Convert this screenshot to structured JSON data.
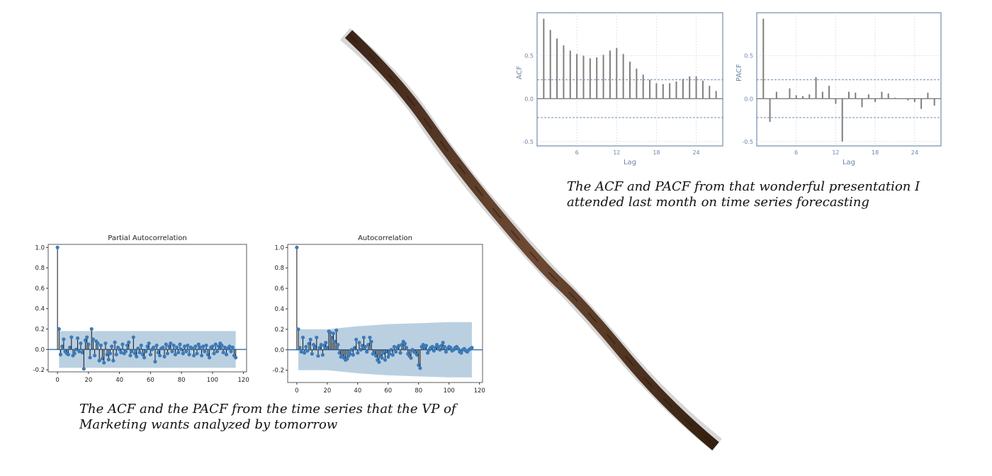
{
  "captions": {
    "top": "The ACF and PACF from that wonderful presentation I attended last month on time series forecasting",
    "bottom": "The ACF and the PACF from the time series that the VP of Marketing wants analyzed by tomorrow"
  },
  "colors": {
    "r_bar": "#7f7f7f",
    "r_ci": "#6f8fb3",
    "r_frame": "#8ea4be",
    "py_marker": "#3d7ab8",
    "py_band": "#aec8dc",
    "stick": "#5b3b2b"
  },
  "chart_data": [
    {
      "id": "r-acf",
      "type": "bar",
      "xlabel": "Lag",
      "ylabel": "ACF",
      "xlim": [
        0,
        28
      ],
      "ylim": [
        -0.55,
        1.0
      ],
      "xticks": [
        6,
        12,
        18,
        24
      ],
      "yticks": [
        -0.5,
        0.0,
        0.5
      ],
      "ytick_labels": [
        "-0.5",
        "0.0",
        "0.5"
      ],
      "ci": 0.22,
      "x": [
        1,
        2,
        3,
        4,
        5,
        6,
        7,
        8,
        9,
        10,
        11,
        12,
        13,
        14,
        15,
        16,
        17,
        18,
        19,
        20,
        21,
        22,
        23,
        24,
        25,
        26,
        27
      ],
      "values": [
        0.93,
        0.8,
        0.7,
        0.62,
        0.56,
        0.52,
        0.5,
        0.47,
        0.48,
        0.51,
        0.56,
        0.59,
        0.52,
        0.43,
        0.35,
        0.28,
        0.22,
        0.18,
        0.17,
        0.18,
        0.2,
        0.23,
        0.26,
        0.26,
        0.21,
        0.15,
        0.09
      ]
    },
    {
      "id": "r-pacf",
      "type": "bar",
      "xlabel": "Lag",
      "ylabel": "PACF",
      "xlim": [
        0,
        28
      ],
      "ylim": [
        -0.55,
        1.0
      ],
      "xticks": [
        6,
        12,
        18,
        24
      ],
      "yticks": [
        -0.5,
        0.0,
        0.5
      ],
      "ytick_labels": [
        "-0.5",
        "0.0",
        "0.5"
      ],
      "ci": 0.22,
      "x": [
        1,
        2,
        3,
        4,
        5,
        6,
        7,
        8,
        9,
        10,
        11,
        12,
        13,
        14,
        15,
        16,
        17,
        18,
        19,
        20,
        21,
        22,
        23,
        24,
        25,
        26,
        27
      ],
      "values": [
        0.93,
        -0.27,
        0.08,
        0.0,
        0.12,
        0.04,
        0.03,
        0.05,
        0.25,
        0.08,
        0.15,
        -0.06,
        -0.5,
        0.08,
        0.07,
        -0.1,
        0.05,
        -0.04,
        0.08,
        0.06,
        0.01,
        0.0,
        -0.02,
        -0.04,
        -0.12,
        0.07,
        -0.08
      ]
    },
    {
      "id": "py-pacf",
      "type": "bar",
      "title": "Partial Autocorrelation",
      "xlim": [
        -6,
        122
      ],
      "ylim": [
        -0.22,
        1.03
      ],
      "xticks": [
        0,
        20,
        40,
        60,
        80,
        100,
        120
      ],
      "yticks": [
        -0.2,
        0.0,
        0.2,
        0.4,
        0.6,
        0.8,
        1.0
      ],
      "ytick_labels": [
        "-0.2",
        "0.0",
        "0.2",
        "0.4",
        "0.6",
        "0.8",
        "1.0"
      ],
      "band_x": [
        1,
        115
      ],
      "band_upper": [
        0.18,
        0.18
      ],
      "band_lower": [
        -0.18,
        -0.18
      ],
      "values": [
        1.0,
        0.2,
        -0.05,
        0.03,
        0.1,
        -0.02,
        -0.04,
        -0.05,
        0.02,
        0.12,
        -0.06,
        -0.04,
        0.0,
        0.11,
        -0.02,
        0.06,
        -0.03,
        -0.19,
        0.09,
        0.12,
        0.05,
        -0.08,
        0.2,
        0.1,
        -0.06,
        0.08,
        0.06,
        -0.11,
        0.04,
        -0.09,
        -0.13,
        0.06,
        -0.05,
        -0.1,
        -0.04,
        0.03,
        -0.11,
        0.07,
        -0.05,
        0.02,
        0.0,
        -0.03,
        0.05,
        -0.04,
        -0.02,
        0.04,
        0.07,
        -0.06,
        -0.02,
        0.12,
        -0.04,
        -0.07,
        0.01,
        -0.03,
        0.04,
        -0.05,
        -0.08,
        -0.02,
        0.03,
        0.06,
        -0.05,
        0.0,
        0.02,
        -0.12,
        0.04,
        -0.03,
        -0.06,
        0.01,
        0.02,
        -0.07,
        0.05,
        -0.04,
        0.03,
        0.06,
        -0.02,
        0.04,
        -0.05,
        0.02,
        -0.03,
        0.05,
        0.0,
        -0.04,
        0.03,
        -0.02,
        0.04,
        -0.05,
        0.02,
        0.01,
        -0.06,
        0.03,
        -0.04,
        0.05,
        0.02,
        -0.06,
        0.03,
        -0.02,
        0.04,
        -0.05,
        -0.08,
        0.02,
        0.03,
        -0.04,
        0.05,
        -0.02,
        0.03,
        0.06,
        0.04,
        -0.03,
        0.02,
        -0.05,
        0.01,
        0.03,
        -0.02,
        0.02,
        -0.06,
        -0.08
      ]
    },
    {
      "id": "py-acf",
      "type": "bar",
      "title": "Autocorrelation",
      "xlim": [
        -6,
        122
      ],
      "ylim": [
        -0.32,
        1.03
      ],
      "xticks": [
        0,
        20,
        40,
        60,
        80,
        100,
        120
      ],
      "yticks": [
        -0.2,
        0.0,
        0.2,
        0.4,
        0.6,
        0.8,
        1.0
      ],
      "ytick_labels": [
        "-0.2",
        "0.0",
        "0.2",
        "0.4",
        "0.6",
        "0.8",
        "1.0"
      ],
      "band_x": [
        1,
        20,
        40,
        60,
        80,
        100,
        115
      ],
      "band_upper": [
        0.2,
        0.2,
        0.23,
        0.25,
        0.26,
        0.27,
        0.27
      ],
      "band_lower": [
        -0.2,
        -0.2,
        -0.23,
        -0.25,
        -0.26,
        -0.27,
        -0.27
      ],
      "values": [
        1.0,
        0.2,
        0.02,
        -0.02,
        0.12,
        -0.03,
        0.03,
        -0.01,
        0.06,
        0.1,
        -0.04,
        0.05,
        0.03,
        0.12,
        -0.06,
        0.02,
        0.05,
        -0.05,
        0.04,
        0.07,
        0.02,
        0.18,
        0.17,
        0.12,
        0.16,
        0.08,
        0.19,
        0.05,
        -0.03,
        -0.07,
        -0.06,
        -0.08,
        -0.1,
        -0.09,
        -0.06,
        -0.04,
        0.0,
        -0.05,
        0.02,
        0.1,
        -0.03,
        0.07,
        0.0,
        0.04,
        0.12,
        0.03,
        -0.02,
        0.05,
        0.12,
        0.08,
        -0.04,
        -0.03,
        -0.06,
        -0.1,
        -0.12,
        -0.06,
        -0.08,
        -0.03,
        -0.1,
        -0.02,
        -0.07,
        -0.04,
        0.0,
        -0.05,
        0.03,
        -0.02,
        0.02,
        0.04,
        -0.03,
        0.05,
        0.08,
        0.06,
        0.02,
        -0.04,
        -0.06,
        -0.08,
        0.0,
        -0.02,
        -0.03,
        -0.05,
        -0.15,
        -0.18,
        0.03,
        0.05,
        0.02,
        0.04,
        -0.03,
        0.0,
        0.02,
        0.03,
        -0.01,
        0.02,
        0.05,
        0.03,
        0.0,
        0.04,
        0.07,
        0.03,
        -0.02,
        0.01,
        0.03,
        0.02,
        -0.01,
        0.0,
        0.02,
        0.03,
        0.01,
        -0.02,
        -0.03,
        0.0,
        0.01,
        -0.01,
        -0.02,
        0.0,
        0.01,
        0.02
      ]
    }
  ]
}
